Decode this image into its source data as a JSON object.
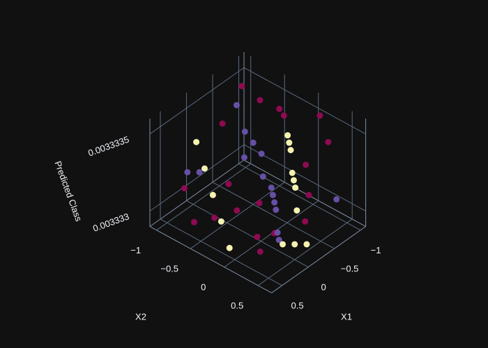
{
  "chart_data": {
    "type": "scatter3d",
    "xaxis_title": "X1",
    "yaxis_title": "X2",
    "zaxis_title": "Predicted Class",
    "xlim": [
      -1.1,
      0.7
    ],
    "ylim": [
      -1.1,
      0.7
    ],
    "zlim": [
      0.0033329,
      0.0033336
    ],
    "xticks": [
      {
        "value": -1,
        "label": "−1"
      },
      {
        "value": -0.5,
        "label": "−0.5"
      },
      0,
      0.5
    ],
    "yticks": [
      {
        "value": -1,
        "label": "−1"
      },
      {
        "value": -0.5,
        "label": "−0.5"
      },
      0,
      0.5
    ],
    "zticks": [
      0.003333,
      0.0033335
    ],
    "grid": true,
    "series": [
      {
        "color": "#8e0a52",
        "x": [
          -0.8,
          -1,
          0.3,
          0.5,
          0.2,
          -0.1,
          0,
          -0.6,
          -0.9,
          -0.3,
          0.4,
          -0.5,
          0.1,
          -0.2,
          0.6,
          -0.7,
          0.2,
          -0.4,
          0.5,
          -1
        ],
        "y": [
          -0.9,
          -0.5,
          -0.9,
          -0.6,
          0.1,
          -0.1,
          0.2,
          0.2,
          0.3,
          -0.8,
          0.3,
          -0.4,
          -0.4,
          0.5,
          0,
          -0.2,
          -0.2,
          0.4,
          -0.3,
          0.1
        ],
        "z": [
          0.0033335,
          0.0033334,
          0.0033331,
          0.003333,
          0.003333,
          0.0033331,
          0.003333,
          0.0033333,
          0.0033334,
          0.0033334,
          0.003333,
          0.0033336,
          0.0033332,
          0.0033331,
          0.003333,
          0.0033335,
          0.0033331,
          0.0033332,
          0.0033331,
          0.0033335
        ]
      },
      {
        "color": "#6650a6",
        "x": [
          -0.6,
          -0.5,
          -0.4,
          -0.3,
          -0.2,
          -0.1,
          0,
          0.1,
          0.2,
          0.3,
          -0.7,
          -0.8,
          0.4,
          0.5,
          -0.2
        ],
        "y": [
          -0.7,
          -0.5,
          -0.3,
          -0.2,
          0,
          0.1,
          0.2,
          0.3,
          0.4,
          0.5,
          -0.9,
          0.5,
          -0.6,
          -0.7,
          -0.4
        ],
        "z": [
          0.0033333,
          0.0033333,
          0.0033333,
          0.0033332,
          0.0033332,
          0.0033332,
          0.0033332,
          0.0033332,
          0.0033331,
          0.0033331,
          0.0033334,
          0.0033331,
          0.0033333,
          0.0033333,
          0.0033333
        ]
      },
      {
        "color": "#f5f2b0",
        "x": [
          -0.9,
          -0.8,
          -0.7,
          -0.6,
          -0.5,
          -0.4,
          -0.3,
          0.2,
          0.3,
          0.4,
          0.5,
          0.6,
          -0.1,
          0,
          0.1
        ],
        "y": [
          -0.3,
          -0.2,
          -0.1,
          0,
          0.1,
          0.2,
          0.3,
          -0.8,
          -0.6,
          -0.4,
          -0.2,
          0,
          0.6,
          0.5,
          0.4
        ],
        "z": [
          0.0033333,
          0.0033333,
          0.0033333,
          0.0033332,
          0.0033332,
          0.0033332,
          0.0033331,
          0.0033334,
          0.0033333,
          0.0033332,
          0.0033331,
          0.003333,
          0.003333,
          0.003333,
          0.003333
        ]
      }
    ]
  }
}
